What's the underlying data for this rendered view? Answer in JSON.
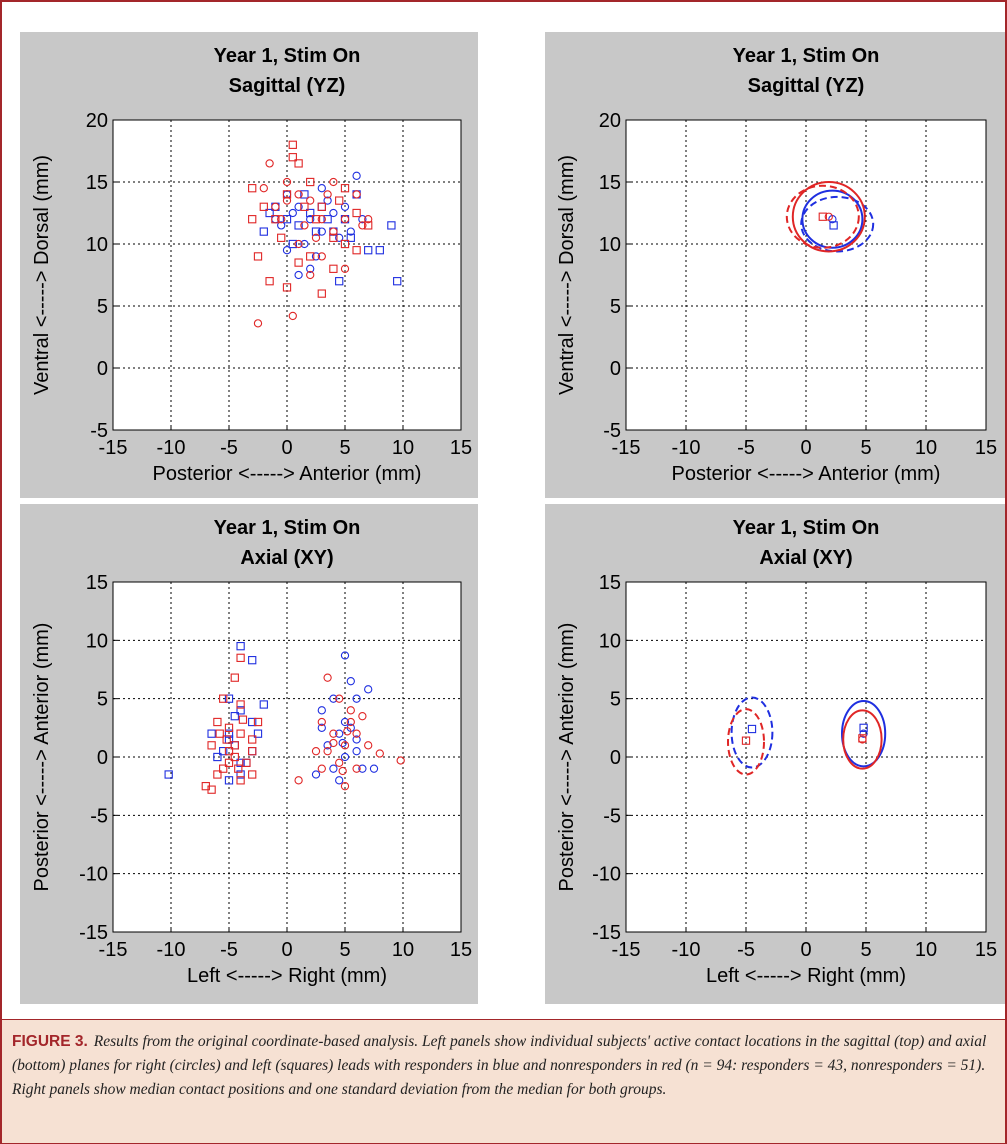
{
  "colors": {
    "responder": "#1f2fe0",
    "nonresponder": "#e02626",
    "panel_bg": "#c8c8c8",
    "accent": "#a3262a"
  },
  "caption": {
    "label": "FIGURE 3.",
    "text": "Results from the original coordinate-based analysis. Left panels show individual subjects' active contact locations in the sagittal (top) and axial (bottom) planes for right (circles) and left (squares) leads with responders in blue and nonresponders in red (n = 94: responders = 43, nonresponders = 51). Right panels show median contact positions and one standard deviation from the median for both groups."
  },
  "chart_data": [
    {
      "type": "scatter",
      "title": [
        "Year 1, Stim On",
        "Sagittal (YZ)"
      ],
      "xlabel": "Posterior <-----> Anterior (mm)",
      "ylabel": "Ventral <-----> Dorsal (mm)",
      "xlim": [
        -15,
        15
      ],
      "ylim": [
        -5,
        20
      ],
      "xticks": [
        -15,
        -10,
        -5,
        0,
        5,
        10,
        15
      ],
      "yticks": [
        -5,
        0,
        5,
        10,
        15,
        20
      ],
      "grid": true,
      "series": [
        {
          "group": "responders",
          "lead": "right",
          "marker": "circle",
          "color": "#1f2fe0",
          "points": [
            [
              0,
              14
            ],
            [
              1,
              13
            ],
            [
              2,
              12
            ],
            [
              3,
              11
            ],
            [
              4,
              12.5
            ],
            [
              5,
              13
            ],
            [
              6,
              15.5
            ],
            [
              1.5,
              10
            ],
            [
              2.5,
              9
            ],
            [
              -0.5,
              11.5
            ],
            [
              0.5,
              12.5
            ],
            [
              3.5,
              13.5
            ],
            [
              4.5,
              10.5
            ],
            [
              5.5,
              11
            ],
            [
              6.5,
              12
            ],
            [
              2,
              8
            ],
            [
              1,
              7.5
            ],
            [
              -1,
              12
            ],
            [
              0,
              9.5
            ],
            [
              3,
              14.5
            ]
          ]
        },
        {
          "group": "responders",
          "lead": "left",
          "marker": "square",
          "color": "#1f2fe0",
          "points": [
            [
              -1,
              13
            ],
            [
              0,
              12
            ],
            [
              1,
              11.5
            ],
            [
              2,
              12.5
            ],
            [
              3,
              13
            ],
            [
              4,
              11
            ],
            [
              5,
              12
            ],
            [
              6,
              14
            ],
            [
              7,
              9.5
            ],
            [
              9,
              11.5
            ],
            [
              9.5,
              7
            ],
            [
              4.5,
              7
            ],
            [
              -2,
              11
            ],
            [
              0.5,
              10
            ],
            [
              1.5,
              14
            ],
            [
              2.5,
              11
            ],
            [
              3.5,
              12
            ],
            [
              5.5,
              10.5
            ],
            [
              8,
              9.5
            ],
            [
              -1.5,
              12.5
            ]
          ]
        },
        {
          "group": "nonresponders",
          "lead": "right",
          "marker": "circle",
          "color": "#e02626",
          "points": [
            [
              -2,
              14.5
            ],
            [
              -1,
              13
            ],
            [
              0,
              15
            ],
            [
              1,
              14
            ],
            [
              2,
              13.5
            ],
            [
              3,
              12
            ],
            [
              4,
              11
            ],
            [
              5,
              12
            ],
            [
              6,
              14
            ],
            [
              7,
              12
            ],
            [
              0.5,
              4.2
            ],
            [
              -2.5,
              3.6
            ],
            [
              1,
              10
            ],
            [
              2,
              7.5
            ],
            [
              3,
              9
            ],
            [
              5,
              8
            ],
            [
              -1.5,
              16.5
            ],
            [
              0,
              13.5
            ],
            [
              1.5,
              11.5
            ],
            [
              4,
              15
            ],
            [
              6.5,
              11.5
            ],
            [
              2.5,
              10.5
            ],
            [
              3.5,
              14
            ],
            [
              -0.5,
              12
            ]
          ]
        },
        {
          "group": "nonresponders",
          "lead": "left",
          "marker": "square",
          "color": "#e02626",
          "points": [
            [
              -3,
              14.5
            ],
            [
              -2,
              13
            ],
            [
              -1,
              12
            ],
            [
              0,
              14
            ],
            [
              1,
              16.5
            ],
            [
              0.5,
              18
            ],
            [
              2,
              15
            ],
            [
              3,
              13
            ],
            [
              4,
              10.5
            ],
            [
              5,
              14.5
            ],
            [
              6,
              12.5
            ],
            [
              7,
              11.5
            ],
            [
              -2.5,
              9
            ],
            [
              -1.5,
              7
            ],
            [
              0,
              6.5
            ],
            [
              1,
              8.5
            ],
            [
              2,
              9
            ],
            [
              3,
              6
            ],
            [
              4,
              8
            ],
            [
              5,
              10
            ],
            [
              -3,
              12
            ],
            [
              1.5,
              13
            ],
            [
              2.5,
              12
            ],
            [
              -0.5,
              10.5
            ],
            [
              4.5,
              13.5
            ],
            [
              6,
              9.5
            ],
            [
              0.5,
              17
            ]
          ]
        }
      ]
    },
    {
      "type": "scatter",
      "title": [
        "Year 1, Stim On",
        "Sagittal (YZ)"
      ],
      "xlabel": "Posterior <-----> Anterior (mm)",
      "ylabel": "Ventral <-----> Dorsal (mm)",
      "xlim": [
        -15,
        15
      ],
      "ylim": [
        -5,
        20
      ],
      "xticks": [
        -15,
        -10,
        -5,
        0,
        5,
        10,
        15
      ],
      "yticks": [
        -5,
        0,
        5,
        10,
        15,
        20
      ],
      "grid": true,
      "medians": [
        {
          "group": "responders",
          "lead": "right",
          "marker": "circle",
          "color": "#1f2fe0",
          "x": 2.2,
          "y": 12
        },
        {
          "group": "responders",
          "lead": "left",
          "marker": "square",
          "color": "#1f2fe0",
          "x": 2.3,
          "y": 11.5
        },
        {
          "group": "nonresponders",
          "lead": "right",
          "marker": "circle",
          "color": "#e02626",
          "x": 1.9,
          "y": 12.2
        },
        {
          "group": "nonresponders",
          "lead": "left",
          "marker": "square",
          "color": "#e02626",
          "x": 1.4,
          "y": 12.2
        }
      ],
      "ellipses": [
        {
          "group": "responders",
          "lead": "right",
          "style": "solid",
          "color": "#1f2fe0",
          "cx": 2.2,
          "cy": 12,
          "rx": 2.5,
          "ry": 2.3
        },
        {
          "group": "responders",
          "lead": "left",
          "style": "dashed",
          "color": "#1f2fe0",
          "cx": 2.6,
          "cy": 11.6,
          "rx": 3.0,
          "ry": 2.2
        },
        {
          "group": "nonresponders",
          "lead": "right",
          "style": "solid",
          "color": "#e02626",
          "cx": 1.9,
          "cy": 12.2,
          "rx": 3.0,
          "ry": 2.8
        },
        {
          "group": "nonresponders",
          "lead": "left",
          "style": "dashed",
          "color": "#e02626",
          "cx": 1.4,
          "cy": 12.2,
          "rx": 3.0,
          "ry": 2.5
        }
      ]
    },
    {
      "type": "scatter",
      "title": [
        "Year 1, Stim On",
        "Axial (XY)"
      ],
      "xlabel": "Left <-----> Right (mm)",
      "ylabel": "Posterior <-----> Anterior (mm)",
      "xlim": [
        -15,
        15
      ],
      "ylim": [
        -15,
        15
      ],
      "xticks": [
        -15,
        -10,
        -5,
        0,
        5,
        10,
        15
      ],
      "yticks": [
        -15,
        -10,
        -5,
        0,
        5,
        10,
        15
      ],
      "grid": true,
      "series": [
        {
          "group": "responders",
          "lead": "right",
          "marker": "circle",
          "color": "#1f2fe0",
          "points": [
            [
              5,
              8.7
            ],
            [
              5.5,
              6.5
            ],
            [
              4,
              5
            ],
            [
              6,
              5
            ],
            [
              3,
              4
            ],
            [
              5,
              3
            ],
            [
              4.5,
              2
            ],
            [
              6,
              1.5
            ],
            [
              3.5,
              1
            ],
            [
              5,
              0
            ],
            [
              4,
              -1
            ],
            [
              6.5,
              -1
            ],
            [
              7.5,
              -1
            ],
            [
              2.5,
              -1.5
            ],
            [
              4.5,
              -2
            ],
            [
              5.5,
              2.5
            ],
            [
              7,
              5.8
            ],
            [
              6,
              0.5
            ],
            [
              3,
              2.5
            ],
            [
              4.8,
              1.2
            ]
          ]
        },
        {
          "group": "responders",
          "lead": "left",
          "marker": "square",
          "color": "#1f2fe0",
          "points": [
            [
              -4,
              9.5
            ],
            [
              -3,
              8.3
            ],
            [
              -5,
              5
            ],
            [
              -4,
              4
            ],
            [
              -3,
              3
            ],
            [
              -5,
              2
            ],
            [
              -4.5,
              1
            ],
            [
              -6,
              0
            ],
            [
              -3.5,
              -0.5
            ],
            [
              -4,
              -1.5
            ],
            [
              -5,
              -2
            ],
            [
              -10.2,
              -1.5
            ],
            [
              -2,
              4.5
            ],
            [
              -6.5,
              2
            ],
            [
              -4.5,
              3.5
            ],
            [
              -3,
              0.5
            ],
            [
              -5.5,
              0.5
            ],
            [
              -2.5,
              2
            ],
            [
              -4,
              -0.5
            ],
            [
              -5,
              1.5
            ]
          ]
        },
        {
          "group": "nonresponders",
          "lead": "right",
          "marker": "circle",
          "color": "#e02626",
          "points": [
            [
              3.5,
              6.8
            ],
            [
              4.5,
              5
            ],
            [
              5.5,
              4
            ],
            [
              3,
              3
            ],
            [
              4,
              2
            ],
            [
              6,
              2
            ],
            [
              5,
              1
            ],
            [
              3.5,
              0.5
            ],
            [
              4.5,
              -0.5
            ],
            [
              6,
              -1
            ],
            [
              5,
              -2.5
            ],
            [
              1,
              -2
            ],
            [
              7,
              1
            ],
            [
              8,
              0.3
            ],
            [
              9.8,
              -0.3
            ],
            [
              2.5,
              0.5
            ],
            [
              5.5,
              3
            ],
            [
              4,
              1.2
            ],
            [
              3,
              -1
            ],
            [
              6.5,
              3.5
            ],
            [
              4.8,
              -1.2
            ],
            [
              5.2,
              2.2
            ]
          ]
        },
        {
          "group": "nonresponders",
          "lead": "left",
          "marker": "square",
          "color": "#e02626",
          "points": [
            [
              -4,
              8.5
            ],
            [
              -4.5,
              6.8
            ],
            [
              -5.5,
              5
            ],
            [
              -4,
              4.5
            ],
            [
              -6,
              3
            ],
            [
              -5,
              2.5
            ],
            [
              -4,
              2
            ],
            [
              -3,
              1.5
            ],
            [
              -6.5,
              1
            ],
            [
              -5,
              0.5
            ],
            [
              -4.5,
              0
            ],
            [
              -3.5,
              -0.5
            ],
            [
              -5.5,
              -1
            ],
            [
              -6,
              -1.5
            ],
            [
              -7,
              -2.5
            ],
            [
              -4,
              -2
            ],
            [
              -3,
              0.5
            ],
            [
              -2.5,
              3
            ],
            [
              -5,
              -0.5
            ],
            [
              -6.5,
              -2.8
            ],
            [
              -3,
              -1.5
            ],
            [
              -4.5,
              1
            ],
            [
              -5.8,
              2
            ],
            [
              -3.8,
              3.2
            ],
            [
              -5.2,
              1.5
            ],
            [
              -4.2,
              -1
            ]
          ]
        }
      ]
    },
    {
      "type": "scatter",
      "title": [
        "Year 1, Stim On",
        "Axial (XY)"
      ],
      "xlabel": "Left <-----> Right (mm)",
      "ylabel": "Posterior <-----> Anterior (mm)",
      "xlim": [
        -15,
        15
      ],
      "ylim": [
        -15,
        15
      ],
      "xticks": [
        -15,
        -10,
        -5,
        0,
        5,
        10,
        15
      ],
      "yticks": [
        -15,
        -10,
        -5,
        0,
        5,
        10,
        15
      ],
      "grid": true,
      "medians": [
        {
          "group": "responders",
          "lead": "right",
          "marker": "circle",
          "color": "#1f2fe0",
          "x": 4.8,
          "y": 2
        },
        {
          "group": "responders",
          "lead": "left",
          "marker": "square",
          "color": "#1f2fe0",
          "x": -4.5,
          "y": 2.4
        },
        {
          "group": "responders",
          "lead": "right",
          "marker": "square",
          "color": "#1f2fe0",
          "x": 4.8,
          "y": 2.5
        },
        {
          "group": "nonresponders",
          "lead": "right",
          "marker": "circle",
          "color": "#e02626",
          "x": 4.7,
          "y": 1.5
        },
        {
          "group": "nonresponders",
          "lead": "left",
          "marker": "square",
          "color": "#e02626",
          "x": -5,
          "y": 1.4
        },
        {
          "group": "nonresponders",
          "lead": "right",
          "marker": "square",
          "color": "#e02626",
          "x": 4.7,
          "y": 1.6
        }
      ],
      "ellipses": [
        {
          "group": "responders",
          "lead": "right",
          "style": "solid",
          "color": "#1f2fe0",
          "cx": 4.8,
          "cy": 2,
          "rx": 1.8,
          "ry": 2.8
        },
        {
          "group": "responders",
          "lead": "left",
          "style": "dashed",
          "color": "#1f2fe0",
          "cx": -4.5,
          "cy": 2.1,
          "rx": 1.7,
          "ry": 3.0
        },
        {
          "group": "nonresponders",
          "lead": "right",
          "style": "solid",
          "color": "#e02626",
          "cx": 4.7,
          "cy": 1.5,
          "rx": 1.6,
          "ry": 2.5
        },
        {
          "group": "nonresponders",
          "lead": "left",
          "style": "dashed",
          "color": "#e02626",
          "cx": -5,
          "cy": 1.3,
          "rx": 1.5,
          "ry": 2.8
        }
      ]
    }
  ]
}
